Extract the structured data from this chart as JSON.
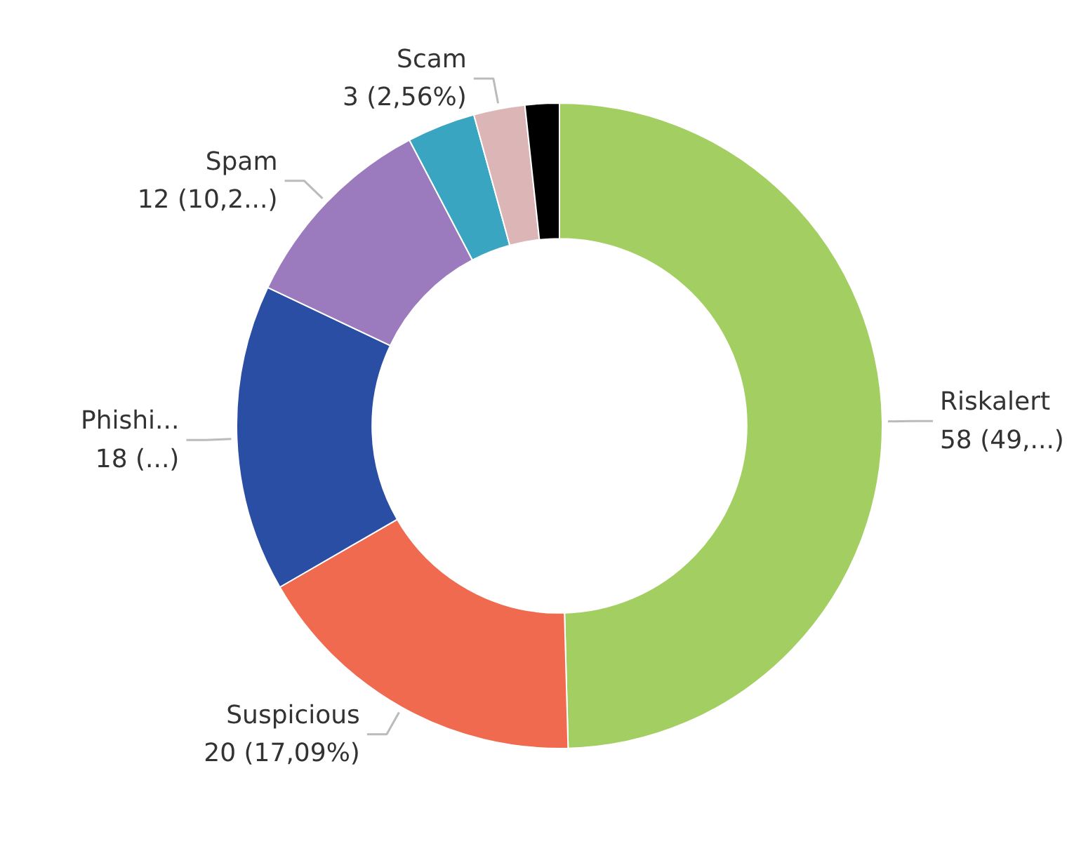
{
  "chart_data": {
    "type": "donut",
    "categories": [
      "Riskalert",
      "Suspicious",
      "Phishi...",
      "Spam",
      null,
      "Scam",
      null
    ],
    "values": [
      58,
      20,
      18,
      12,
      4,
      3,
      2
    ],
    "colors": [
      "#a3cf62",
      "#f06a50",
      "#2a4ea3",
      "#9b7bbd",
      "#3aa5c0",
      "#dcb6b6",
      "#000000"
    ],
    "value_labels": [
      "58 (49,...)",
      "20 (17,09%)",
      "18 (...)",
      "12 (10,2...)",
      null,
      "3 (2,56%)",
      null
    ]
  }
}
